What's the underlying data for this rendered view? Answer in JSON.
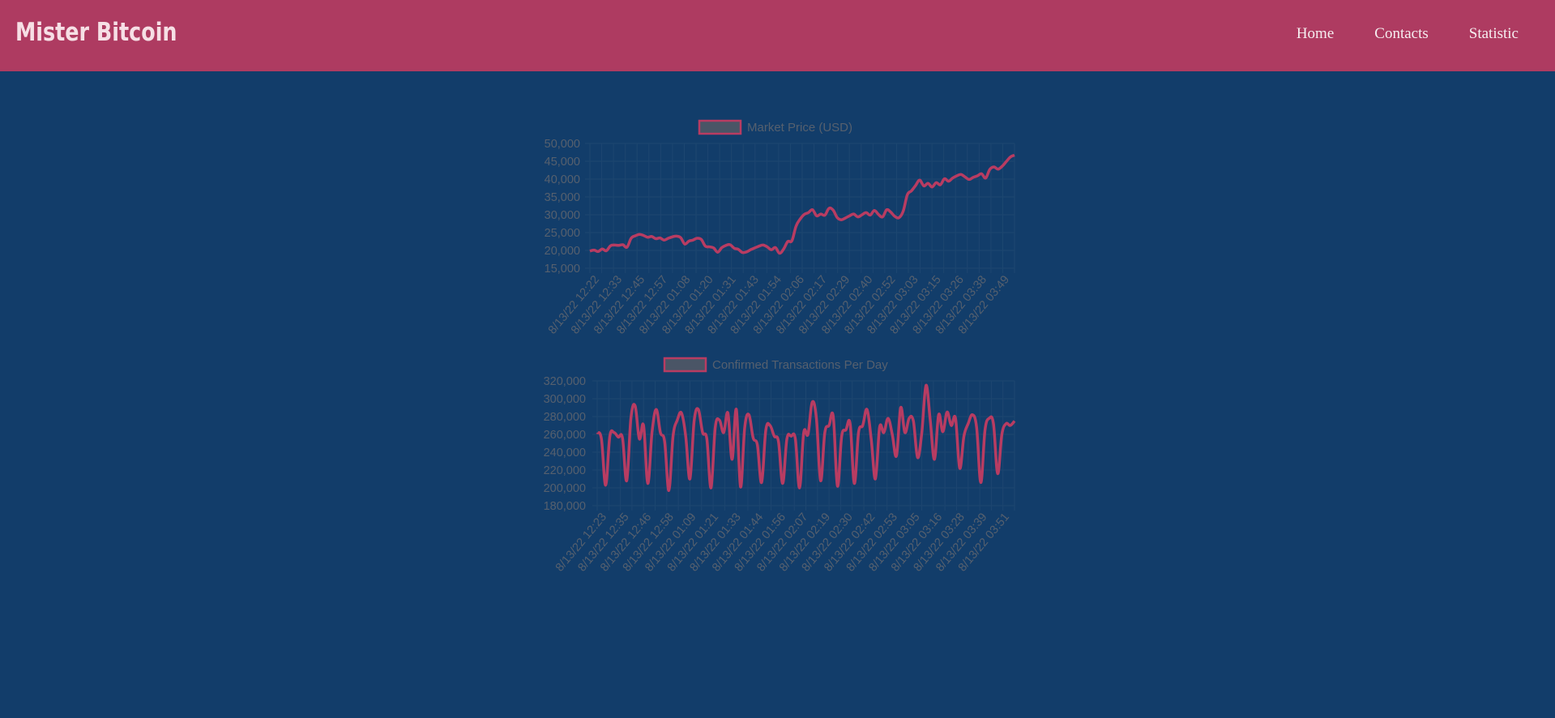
{
  "header": {
    "logo": "Mister Bitcoin",
    "nav": [
      {
        "label": "Home"
      },
      {
        "label": "Contacts"
      },
      {
        "label": "Statistic"
      }
    ]
  },
  "colors": {
    "header_bg": "#ae3b61",
    "page_bg": "#123d6a",
    "line": "#b83c62",
    "text_muted": "#56606e",
    "grid": "#1d4670"
  },
  "chart_data": [
    {
      "type": "line",
      "legend": "Market Price (USD)",
      "ylim": [
        15000,
        50000
      ],
      "yticks": [
        "50,000",
        "45,000",
        "40,000",
        "35,000",
        "30,000",
        "25,000",
        "20,000",
        "15,000"
      ],
      "xticks": [
        "8/13/22 12:22",
        "8/13/22 12:33",
        "8/13/22 12:45",
        "8/13/22 12:57",
        "8/13/22 01:08",
        "8/13/22 01:20",
        "8/13/22 01:31",
        "8/13/22 01:43",
        "8/13/22 01:54",
        "8/13/22 02:06",
        "8/13/22 02:17",
        "8/13/22 02:29",
        "8/13/22 02:40",
        "8/13/22 02:52",
        "8/13/22 03:03",
        "8/13/22 03:15",
        "8/13/22 03:26",
        "8/13/22 03:38",
        "8/13/22 03:49"
      ],
      "grid": true,
      "values": [
        19800,
        20100,
        19700,
        20400,
        19900,
        21300,
        21500,
        21400,
        21600,
        20900,
        23400,
        24100,
        24500,
        24200,
        23700,
        23900,
        23300,
        23500,
        22900,
        23400,
        23800,
        24000,
        23600,
        21800,
        22600,
        22900,
        23400,
        23100,
        21200,
        21000,
        20700,
        19500,
        20800,
        21400,
        21600,
        20600,
        20300,
        19400,
        19600,
        20200,
        20700,
        21200,
        21500,
        21000,
        20200,
        20800,
        19200,
        20400,
        22500,
        22700,
        26800,
        28800,
        30100,
        30600,
        31400,
        29700,
        30200,
        29900,
        31800,
        31300,
        29200,
        28600,
        29100,
        29700,
        30200,
        29400,
        30000,
        30600,
        29900,
        31200,
        30100,
        29400,
        31400,
        30700,
        29500,
        29200,
        31000,
        35600,
        36700,
        38200,
        39700,
        38100,
        38800,
        37800,
        39000,
        38400,
        40100,
        39400,
        40300,
        40900,
        41300,
        40600,
        39900,
        40500,
        40900,
        41500,
        40300,
        42700,
        43400,
        42800,
        43600,
        44900,
        46200,
        46700
      ]
    },
    {
      "type": "line",
      "legend": "Confirmed Transactions Per Day",
      "ylim": [
        180000,
        320000
      ],
      "yticks": [
        "320,000",
        "300,000",
        "280,000",
        "260,000",
        "240,000",
        "220,000",
        "200,000",
        "180,000"
      ],
      "xticks": [
        "8/13/22 12:23",
        "8/13/22 12:35",
        "8/13/22 12:46",
        "8/13/22 12:58",
        "8/13/22 01:09",
        "8/13/22 01:21",
        "8/13/22 01:33",
        "8/13/22 01:44",
        "8/13/22 01:56",
        "8/13/22 02:07",
        "8/13/22 02:19",
        "8/13/22 02:30",
        "8/13/22 02:42",
        "8/13/22 02:53",
        "8/13/22 03:05",
        "8/13/22 03:16",
        "8/13/22 03:28",
        "8/13/22 03:39",
        "8/13/22 03:51"
      ],
      "grid": true,
      "values": [
        262000,
        255000,
        203000,
        258000,
        262000,
        257000,
        256000,
        208000,
        278000,
        292000,
        255000,
        270000,
        205000,
        262000,
        288000,
        262000,
        252000,
        197000,
        258000,
        276000,
        284000,
        258000,
        210000,
        275000,
        288000,
        262000,
        255000,
        200000,
        268000,
        276000,
        262000,
        284000,
        232000,
        288000,
        201000,
        268000,
        282000,
        256000,
        248000,
        206000,
        265000,
        270000,
        258000,
        252000,
        205000,
        255000,
        258000,
        255000,
        200000,
        262000,
        260000,
        296000,
        278000,
        208000,
        262000,
        270000,
        280000,
        202000,
        258000,
        265000,
        272000,
        205000,
        262000,
        270000,
        288000,
        255000,
        210000,
        268000,
        262000,
        278000,
        260000,
        236000,
        290000,
        262000,
        278000,
        275000,
        234000,
        262000,
        315000,
        276000,
        232000,
        282000,
        263000,
        285000,
        270000,
        278000,
        222000,
        258000,
        272000,
        282000,
        268000,
        206000,
        265000,
        278000,
        272000,
        216000,
        260000,
        272000,
        270000,
        275000
      ]
    }
  ]
}
